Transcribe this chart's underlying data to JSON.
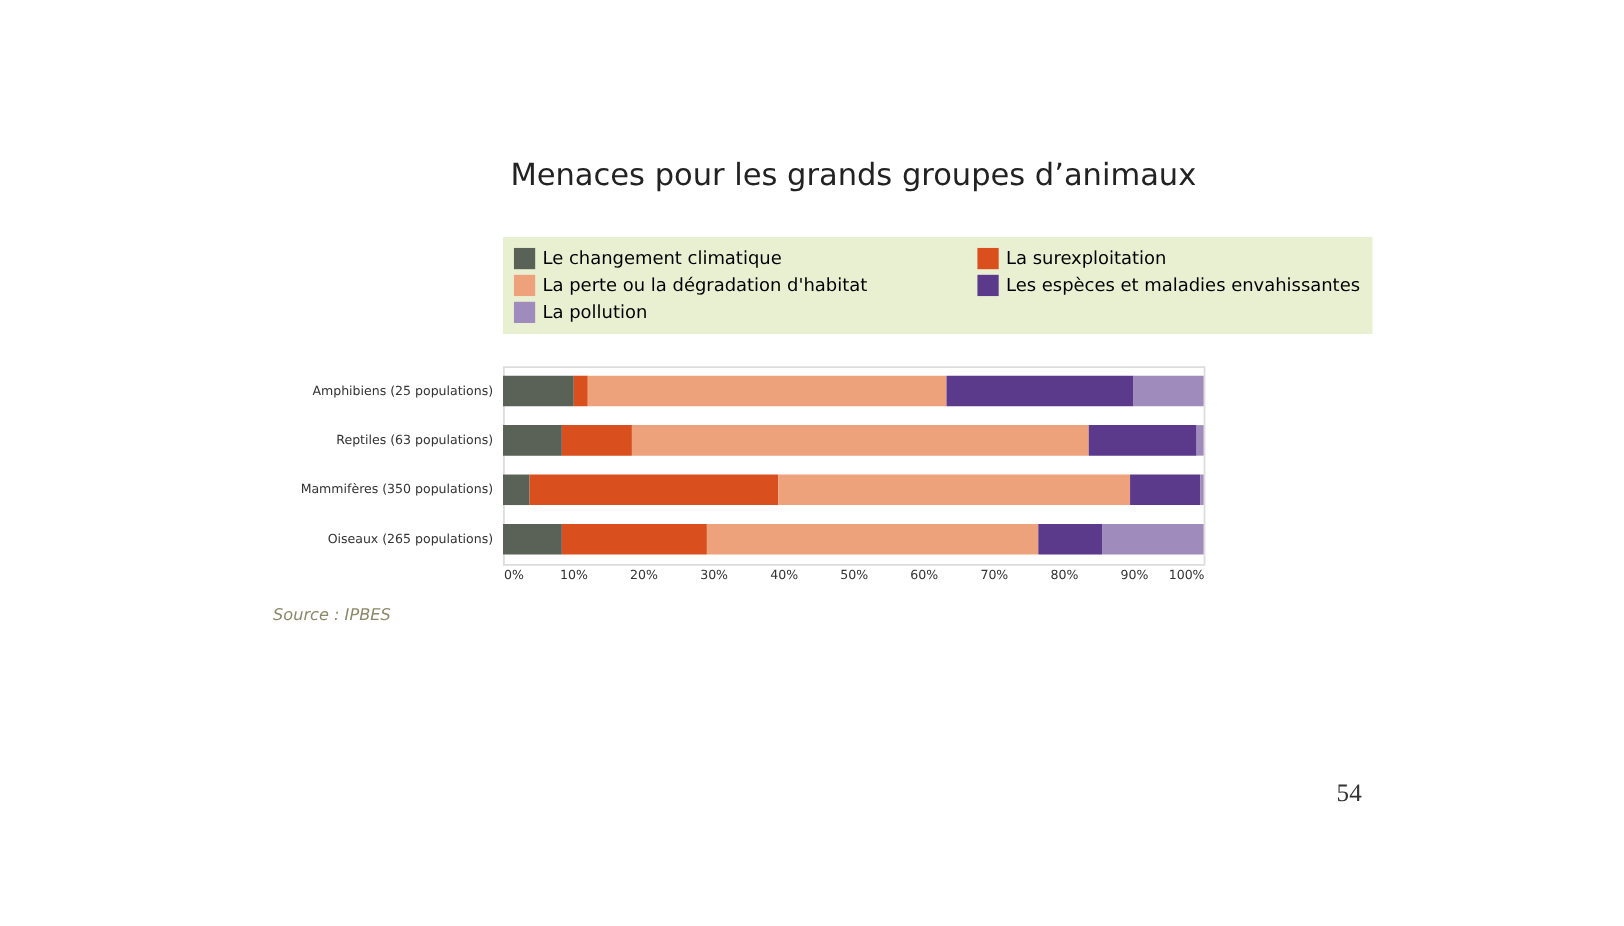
{
  "chart_data": {
    "type": "bar",
    "orientation": "horizontal",
    "stacked": true,
    "title": "Menaces pour les grands groupes d’animaux",
    "categories": [
      "Amphibiens (25 populations)",
      "Reptiles (63 populations)",
      "Mammifères (350 populations)",
      "Oiseaux (265 populations)"
    ],
    "series": [
      {
        "name": "Le changement climatique",
        "color": "#5a6258",
        "values": [
          10.1,
          8.4,
          3.8,
          8.4
        ]
      },
      {
        "name": "La surexploitation",
        "color": "#d9501e",
        "values": [
          2,
          10,
          35.5,
          20.7
        ]
      },
      {
        "name": "La perte ou la dégradation d'habitat",
        "color": "#eea27b",
        "values": [
          51.2,
          65.2,
          50.2,
          47.3
        ]
      },
      {
        "name": "Les espèces et maladies envahissantes",
        "color": "#5b3a8c",
        "values": [
          26.7,
          15.4,
          10,
          9.1
        ]
      },
      {
        "name": "La pollution",
        "color": "#a08bbd",
        "values": [
          10,
          1,
          0.5,
          14.5
        ]
      }
    ],
    "xlim": [
      0,
      100
    ],
    "xticks": [
      {
        "value": 0,
        "label": "0%"
      },
      {
        "value": 10,
        "label": "10%"
      },
      {
        "value": 20,
        "label": "20%"
      },
      {
        "value": 30,
        "label": "30%"
      },
      {
        "value": 40,
        "label": "40%"
      },
      {
        "value": 50,
        "label": "50%"
      },
      {
        "value": 60,
        "label": "60%"
      },
      {
        "value": 70,
        "label": "70%"
      },
      {
        "value": 80,
        "label": "80%"
      },
      {
        "value": 90,
        "label": "90%"
      },
      {
        "value": 100,
        "label": "100%"
      }
    ],
    "grid": false,
    "legend": "top",
    "annotations": [
      "Source : IPBES",
      "54"
    ]
  }
}
